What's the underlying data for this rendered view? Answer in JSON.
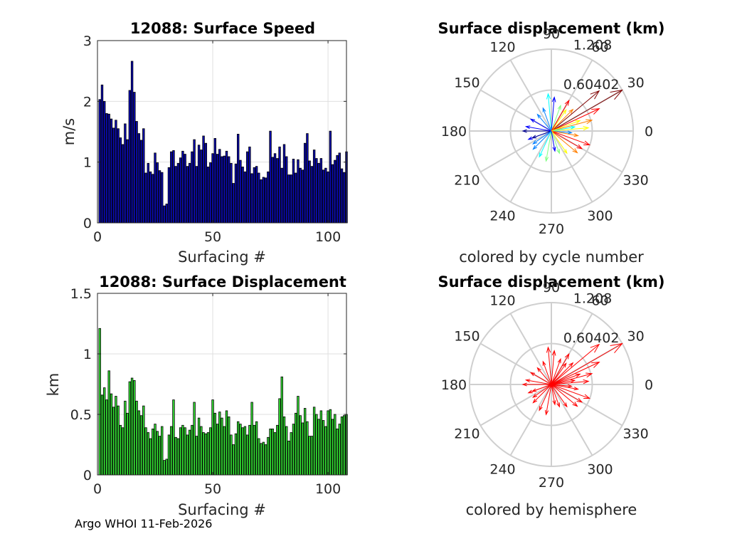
{
  "footer": "Argo WHOI 11-Feb-2026",
  "chart_data": [
    {
      "type": "bar",
      "title": "12088: Surface Speed",
      "xlabel": "Surfacing #",
      "ylabel": "m/s",
      "xlim": [
        0,
        108
      ],
      "ylim": [
        0,
        3
      ],
      "xticks": [
        "0",
        "50",
        "100"
      ],
      "yticks": [
        "0",
        "1",
        "2",
        "3"
      ],
      "bar_color": "#0a0ab4",
      "grid": true,
      "x": [
        1,
        2,
        3,
        4,
        5,
        6,
        7,
        8,
        9,
        10,
        11,
        12,
        13,
        14,
        15,
        16,
        17,
        18,
        19,
        20,
        21,
        22,
        23,
        24,
        25,
        26,
        27,
        28,
        29,
        30,
        31,
        32,
        33,
        34,
        35,
        36,
        37,
        38,
        39,
        40,
        41,
        42,
        43,
        44,
        45,
        46,
        47,
        48,
        49,
        50,
        51,
        52,
        53,
        54,
        55,
        56,
        57,
        58,
        59,
        60,
        61,
        62,
        63,
        64,
        65,
        66,
        67,
        68,
        69,
        70,
        71,
        72,
        73,
        74,
        75,
        76,
        77,
        78,
        79,
        80,
        81,
        82,
        83,
        84,
        85,
        86,
        87,
        88,
        89,
        90,
        91,
        92,
        93,
        94,
        95,
        96,
        97,
        98,
        99,
        100,
        101,
        102,
        103,
        104,
        105,
        106,
        107,
        108
      ],
      "values": [
        2.03,
        2.27,
        2.0,
        1.8,
        1.79,
        1.71,
        1.56,
        1.69,
        1.55,
        1.4,
        1.29,
        1.63,
        1.37,
        2.18,
        2.66,
        2.15,
        1.67,
        1.47,
        1.36,
        1.55,
        0.82,
        0.98,
        0.84,
        0.8,
        1.15,
        0.99,
        0.86,
        0.83,
        0.28,
        0.31,
        0.91,
        1.17,
        1.19,
        0.93,
        0.98,
        1.07,
        1.18,
        1.13,
        0.93,
        0.98,
        1.17,
        1.37,
        0.93,
        1.28,
        1.2,
        1.43,
        1.31,
        0.92,
        0.99,
        1.14,
        1.39,
        1.13,
        1.21,
        1.09,
        1.1,
        1.18,
        1.09,
        0.98,
        0.65,
        0.97,
        1.46,
        1.03,
        0.92,
        0.84,
        1.17,
        1.25,
        0.81,
        0.91,
        0.93,
        0.82,
        0.71,
        0.75,
        0.74,
        0.84,
        1.51,
        1.08,
        1.14,
        1.06,
        1.25,
        0.9,
        1.29,
        1.09,
        0.79,
        0.79,
        1.05,
        0.82,
        1.04,
        0.9,
        0.87,
        1.31,
        1.47,
        1.02,
        0.93,
        1.2,
        1.06,
        0.98,
        1.06,
        0.87,
        0.9,
        0.84,
        1.51,
        0.96,
        1.03,
        1.11,
        1.15,
        0.89,
        0.83,
        1.17
      ]
    },
    {
      "type": "bar",
      "title": "12088: Surface Displacement",
      "xlabel": "Surfacing #",
      "ylabel": "km",
      "xlim": [
        0,
        108
      ],
      "ylim": [
        0,
        1.5
      ],
      "xticks": [
        "0",
        "50",
        "100"
      ],
      "yticks": [
        "0",
        "0.5",
        "1",
        "1.5"
      ],
      "bar_color": "#32dc32",
      "grid": true,
      "x": [
        1,
        2,
        3,
        4,
        5,
        6,
        7,
        8,
        9,
        10,
        11,
        12,
        13,
        14,
        15,
        16,
        17,
        18,
        19,
        20,
        21,
        22,
        23,
        24,
        25,
        26,
        27,
        28,
        29,
        30,
        31,
        32,
        33,
        34,
        35,
        36,
        37,
        38,
        39,
        40,
        41,
        42,
        43,
        44,
        45,
        46,
        47,
        48,
        49,
        50,
        51,
        52,
        53,
        54,
        55,
        56,
        57,
        58,
        59,
        60,
        61,
        62,
        63,
        64,
        65,
        66,
        67,
        68,
        69,
        70,
        71,
        72,
        73,
        74,
        75,
        76,
        77,
        78,
        79,
        80,
        81,
        82,
        83,
        84,
        85,
        86,
        87,
        88,
        89,
        90,
        91,
        92,
        93,
        94,
        95,
        96,
        97,
        98,
        99,
        100,
        101,
        102,
        103,
        104,
        105,
        106,
        107,
        108
      ],
      "values": [
        1.21,
        0.66,
        0.72,
        0.62,
        0.86,
        0.67,
        0.56,
        0.65,
        0.57,
        0.41,
        0.39,
        0.61,
        0.51,
        0.77,
        0.8,
        0.78,
        0.61,
        0.53,
        0.49,
        0.57,
        0.39,
        0.35,
        0.3,
        0.38,
        0.42,
        0.36,
        0.32,
        0.4,
        0.12,
        0.13,
        0.33,
        0.4,
        0.62,
        0.31,
        0.3,
        0.39,
        0.41,
        0.39,
        0.33,
        0.37,
        0.41,
        0.6,
        0.32,
        0.47,
        0.4,
        0.35,
        0.34,
        0.35,
        0.39,
        0.62,
        0.51,
        0.42,
        0.52,
        0.47,
        0.4,
        0.53,
        0.48,
        0.33,
        0.25,
        0.34,
        0.44,
        0.42,
        0.39,
        0.4,
        0.33,
        0.41,
        0.6,
        0.41,
        0.44,
        0.3,
        0.26,
        0.27,
        0.25,
        0.31,
        0.38,
        0.38,
        0.35,
        0.41,
        0.63,
        0.81,
        0.48,
        0.4,
        0.28,
        0.35,
        0.42,
        0.51,
        0.65,
        0.49,
        0.43,
        0.55,
        0.44,
        0.32,
        0.32,
        0.56,
        0.5,
        0.46,
        0.53,
        0.45,
        0.4,
        0.53,
        0.54,
        0.46,
        0.5,
        0.38,
        0.42,
        0.48,
        0.49,
        0.5
      ]
    },
    {
      "type": "polar-compass",
      "title": "Surface displacement (km)",
      "xlabel": "colored by cycle number",
      "rmax": 1.208,
      "rings": [
        0.60402,
        1.208
      ],
      "ring_labels": [
        "0.60402",
        "1.208"
      ],
      "angle_labels": [
        "0",
        "30",
        "60",
        "90",
        "120",
        "150",
        "180",
        "210",
        "240",
        "270",
        "300",
        "330"
      ],
      "colormap": [
        "#00008f",
        "#0000ff",
        "#007fff",
        "#00ffff",
        "#7fff7f",
        "#ffff00",
        "#ff7f00",
        "#ff0000",
        "#7f0000"
      ],
      "vectors": [
        {
          "angle": 30,
          "r": 1.208,
          "color_index": 8
        },
        {
          "angle": 40,
          "r": 0.92,
          "color_index": 8
        },
        {
          "angle": 25,
          "r": 0.78,
          "color_index": 7
        },
        {
          "angle": 15,
          "r": 0.62,
          "color_index": 6
        },
        {
          "angle": 5,
          "r": 0.55,
          "color_index": 5
        },
        {
          "angle": -20,
          "r": 0.6,
          "color_index": 7
        },
        {
          "angle": -30,
          "r": 0.52,
          "color_index": 7
        },
        {
          "angle": -40,
          "r": 0.5,
          "color_index": 6
        },
        {
          "angle": -55,
          "r": 0.4,
          "color_index": 5
        },
        {
          "angle": -70,
          "r": 0.35,
          "color_index": 4
        },
        {
          "angle": -100,
          "r": 0.45,
          "color_index": 4
        },
        {
          "angle": -115,
          "r": 0.42,
          "color_index": 3
        },
        {
          "angle": -135,
          "r": 0.38,
          "color_index": 2
        },
        {
          "angle": -160,
          "r": 0.36,
          "color_index": 1
        },
        {
          "angle": 180,
          "r": 0.42,
          "color_index": 0
        },
        {
          "angle": 170,
          "r": 0.38,
          "color_index": 1
        },
        {
          "angle": 150,
          "r": 0.35,
          "color_index": 1
        },
        {
          "angle": 130,
          "r": 0.32,
          "color_index": 2
        },
        {
          "angle": 110,
          "r": 0.36,
          "color_index": 2
        },
        {
          "angle": 95,
          "r": 0.55,
          "color_index": 3
        },
        {
          "angle": 85,
          "r": 0.5,
          "color_index": 1
        },
        {
          "angle": 70,
          "r": 0.4,
          "color_index": 4
        },
        {
          "angle": 55,
          "r": 0.38,
          "color_index": 5
        },
        {
          "angle": 45,
          "r": 0.45,
          "color_index": 6
        },
        {
          "angle": 10,
          "r": 0.35,
          "color_index": 3
        },
        {
          "angle": -5,
          "r": 0.3,
          "color_index": 2
        },
        {
          "angle": -80,
          "r": 0.3,
          "color_index": 1
        },
        {
          "angle": 200,
          "r": 0.3,
          "color_index": 0
        },
        {
          "angle": 215,
          "r": 0.33,
          "color_index": 2
        },
        {
          "angle": 60,
          "r": 0.52,
          "color_index": 7
        },
        {
          "angle": 20,
          "r": 0.45,
          "color_index": 5
        },
        {
          "angle": -10,
          "r": 0.4,
          "color_index": 6
        }
      ]
    },
    {
      "type": "polar-compass",
      "title": "Surface displacement (km)",
      "xlabel": "colored by hemisphere",
      "rmax": 1.208,
      "rings": [
        0.60402,
        1.208
      ],
      "ring_labels": [
        "0.60402",
        "1.208"
      ],
      "angle_labels": [
        "0",
        "30",
        "60",
        "90",
        "120",
        "150",
        "180",
        "210",
        "240",
        "270",
        "300",
        "330"
      ],
      "vector_color": "#ff0000",
      "vectors": [
        {
          "angle": 30,
          "r": 1.208
        },
        {
          "angle": 40,
          "r": 0.92
        },
        {
          "angle": 25,
          "r": 0.78
        },
        {
          "angle": 15,
          "r": 0.62
        },
        {
          "angle": 5,
          "r": 0.55
        },
        {
          "angle": -20,
          "r": 0.6
        },
        {
          "angle": -30,
          "r": 0.52
        },
        {
          "angle": -40,
          "r": 0.5
        },
        {
          "angle": -55,
          "r": 0.4
        },
        {
          "angle": -70,
          "r": 0.35
        },
        {
          "angle": -100,
          "r": 0.45
        },
        {
          "angle": -115,
          "r": 0.42
        },
        {
          "angle": -135,
          "r": 0.38
        },
        {
          "angle": -160,
          "r": 0.36
        },
        {
          "angle": 180,
          "r": 0.42
        },
        {
          "angle": 170,
          "r": 0.38
        },
        {
          "angle": 150,
          "r": 0.35
        },
        {
          "angle": 130,
          "r": 0.32
        },
        {
          "angle": 110,
          "r": 0.36
        },
        {
          "angle": 95,
          "r": 0.55
        },
        {
          "angle": 85,
          "r": 0.5
        },
        {
          "angle": 70,
          "r": 0.4
        },
        {
          "angle": 55,
          "r": 0.38
        },
        {
          "angle": 45,
          "r": 0.45
        },
        {
          "angle": 10,
          "r": 0.35
        },
        {
          "angle": -5,
          "r": 0.3
        },
        {
          "angle": -80,
          "r": 0.3
        },
        {
          "angle": 200,
          "r": 0.3
        },
        {
          "angle": 215,
          "r": 0.33
        },
        {
          "angle": 60,
          "r": 0.52
        },
        {
          "angle": 20,
          "r": 0.45
        },
        {
          "angle": -10,
          "r": 0.4
        }
      ]
    }
  ]
}
